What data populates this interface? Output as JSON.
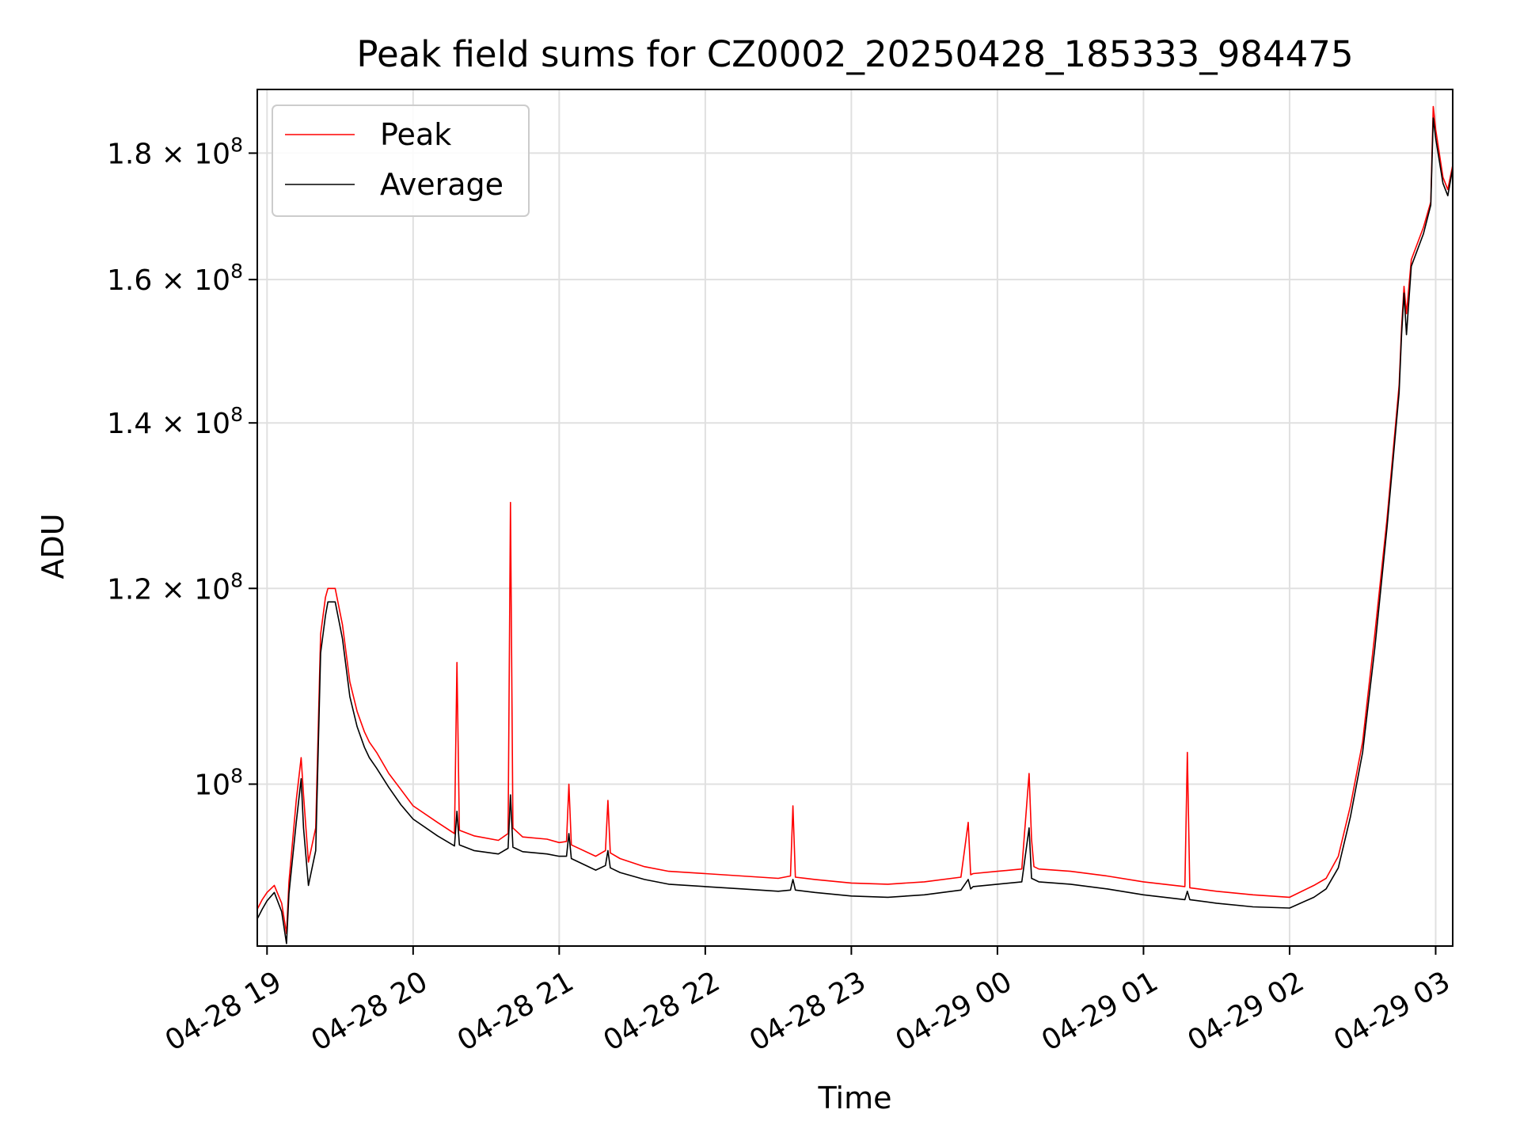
{
  "chart_data": {
    "type": "line",
    "title": "Peak field sums for CZ0002_20250428_185333_984475",
    "xlabel": "Time",
    "ylabel": "ADU",
    "yscale": "log",
    "grid": true,
    "legend_position": "upper left",
    "xlim": [
      "2025-04-28 18:56",
      "2025-04-29 03:07"
    ],
    "ylim": [
      86000000,
      191000000
    ],
    "x_ticks": [
      {
        "value": "2025-04-28 19:00",
        "label": "04-28 19"
      },
      {
        "value": "2025-04-28 20:00",
        "label": "04-28 20"
      },
      {
        "value": "2025-04-28 21:00",
        "label": "04-28 21"
      },
      {
        "value": "2025-04-28 22:00",
        "label": "04-28 22"
      },
      {
        "value": "2025-04-28 23:00",
        "label": "04-28 23"
      },
      {
        "value": "2025-04-29 00:00",
        "label": "04-29 00"
      },
      {
        "value": "2025-04-29 01:00",
        "label": "04-29 01"
      },
      {
        "value": "2025-04-29 02:00",
        "label": "04-29 02"
      },
      {
        "value": "2025-04-29 03:00",
        "label": "04-29 03"
      }
    ],
    "y_ticks": [
      {
        "value": 100000000,
        "mantissa": "",
        "exp": "8"
      },
      {
        "value": 120000000,
        "mantissa": "1.2",
        "exp": "8"
      },
      {
        "value": 140000000,
        "mantissa": "1.4",
        "exp": "8"
      },
      {
        "value": 160000000,
        "mantissa": "1.6",
        "exp": "8"
      },
      {
        "value": 180000000,
        "mantissa": "1.8",
        "exp": "8"
      }
    ],
    "series": [
      {
        "name": "Peak",
        "color": "#ff0000",
        "x": [
          "2025-04-28 18:56",
          "2025-04-28 18:58",
          "2025-04-28 19:00",
          "2025-04-28 19:03",
          "2025-04-28 19:06",
          "2025-04-28 19:08",
          "2025-04-28 19:09",
          "2025-04-28 19:12",
          "2025-04-28 19:14",
          "2025-04-28 19:15",
          "2025-04-28 19:17",
          "2025-04-28 19:20",
          "2025-04-28 19:22",
          "2025-04-28 19:24",
          "2025-04-28 19:25",
          "2025-04-28 19:28",
          "2025-04-28 19:31",
          "2025-04-28 19:34",
          "2025-04-28 19:37",
          "2025-04-28 19:40",
          "2025-04-28 19:42",
          "2025-04-28 19:45",
          "2025-04-28 19:50",
          "2025-04-28 19:55",
          "2025-04-28 20:00",
          "2025-04-28 20:10",
          "2025-04-28 20:17",
          "2025-04-28 20:18",
          "2025-04-28 20:19",
          "2025-04-28 20:25",
          "2025-04-28 20:35",
          "2025-04-28 20:39",
          "2025-04-28 20:40",
          "2025-04-28 20:41",
          "2025-04-28 20:45",
          "2025-04-28 20:55",
          "2025-04-28 21:00",
          "2025-04-28 21:03",
          "2025-04-28 21:04",
          "2025-04-28 21:05",
          "2025-04-28 21:15",
          "2025-04-28 21:19",
          "2025-04-28 21:20",
          "2025-04-28 21:21",
          "2025-04-28 21:25",
          "2025-04-28 21:35",
          "2025-04-28 21:45",
          "2025-04-28 22:00",
          "2025-04-28 22:15",
          "2025-04-28 22:30",
          "2025-04-28 22:35",
          "2025-04-28 22:36",
          "2025-04-28 22:37",
          "2025-04-28 22:45",
          "2025-04-28 23:00",
          "2025-04-28 23:15",
          "2025-04-28 23:30",
          "2025-04-28 23:45",
          "2025-04-28 23:48",
          "2025-04-28 23:49",
          "2025-04-28 23:50",
          "2025-04-29 00:00",
          "2025-04-29 00:10",
          "2025-04-29 00:13",
          "2025-04-29 00:14",
          "2025-04-29 00:15",
          "2025-04-29 00:17",
          "2025-04-29 00:30",
          "2025-04-29 00:45",
          "2025-04-29 01:00",
          "2025-04-29 01:17",
          "2025-04-29 01:18",
          "2025-04-29 01:19",
          "2025-04-29 01:30",
          "2025-04-29 01:45",
          "2025-04-29 02:00",
          "2025-04-29 02:10",
          "2025-04-29 02:15",
          "2025-04-29 02:20",
          "2025-04-29 02:25",
          "2025-04-29 02:30",
          "2025-04-29 02:35",
          "2025-04-29 02:40",
          "2025-04-29 02:45",
          "2025-04-29 02:46",
          "2025-04-29 02:47",
          "2025-04-29 02:48",
          "2025-04-29 02:50",
          "2025-04-29 02:55",
          "2025-04-29 02:58",
          "2025-04-29 02:59",
          "2025-04-29 03:00",
          "2025-04-29 03:03",
          "2025-04-29 03:05",
          "2025-04-29 03:07"
        ],
        "values": [
          89000000,
          89800000,
          90400000,
          91000000,
          89500000,
          87000000,
          91300000,
          98500000,
          102500000,
          99000000,
          93000000,
          96000000,
          115000000,
          119000000,
          120000000,
          120000000,
          116000000,
          110000000,
          107000000,
          105000000,
          104000000,
          103000000,
          101000000,
          99500000,
          98000000,
          96500000,
          95500000,
          112000000,
          95800000,
          95300000,
          94900000,
          95500000,
          130000000,
          96000000,
          95200000,
          95000000,
          94700000,
          94800000,
          100000000,
          94500000,
          93500000,
          94000000,
          98500000,
          93800000,
          93300000,
          92600000,
          92200000,
          92000000,
          91800000,
          91600000,
          91800000,
          98000000,
          91700000,
          91500000,
          91200000,
          91100000,
          91300000,
          91700000,
          96500000,
          91900000,
          92000000,
          92200000,
          92400000,
          101000000,
          95000000,
          92600000,
          92400000,
          92200000,
          91800000,
          91300000,
          90900000,
          103000000,
          90800000,
          90500000,
          90200000,
          90000000,
          91000000,
          91600000,
          93500000,
          98000000,
          104000000,
          115000000,
          128000000,
          145000000,
          153000000,
          159000000,
          155000000,
          163000000,
          168000000,
          172000000,
          188000000,
          184000000,
          176000000,
          174000000,
          178000000
        ]
      },
      {
        "name": "Average",
        "color": "#000000",
        "x": [
          "2025-04-28 18:56",
          "2025-04-28 18:58",
          "2025-04-28 19:00",
          "2025-04-28 19:03",
          "2025-04-28 19:06",
          "2025-04-28 19:08",
          "2025-04-28 19:09",
          "2025-04-28 19:12",
          "2025-04-28 19:14",
          "2025-04-28 19:15",
          "2025-04-28 19:17",
          "2025-04-28 19:20",
          "2025-04-28 19:22",
          "2025-04-28 19:24",
          "2025-04-28 19:25",
          "2025-04-28 19:28",
          "2025-04-28 19:31",
          "2025-04-28 19:34",
          "2025-04-28 19:37",
          "2025-04-28 19:40",
          "2025-04-28 19:42",
          "2025-04-28 19:45",
          "2025-04-28 19:50",
          "2025-04-28 19:55",
          "2025-04-28 20:00",
          "2025-04-28 20:10",
          "2025-04-28 20:17",
          "2025-04-28 20:18",
          "2025-04-28 20:19",
          "2025-04-28 20:25",
          "2025-04-28 20:35",
          "2025-04-28 20:39",
          "2025-04-28 20:40",
          "2025-04-28 20:41",
          "2025-04-28 20:45",
          "2025-04-28 20:55",
          "2025-04-28 21:00",
          "2025-04-28 21:03",
          "2025-04-28 21:04",
          "2025-04-28 21:05",
          "2025-04-28 21:15",
          "2025-04-28 21:19",
          "2025-04-28 21:20",
          "2025-04-28 21:21",
          "2025-04-28 21:25",
          "2025-04-28 21:35",
          "2025-04-28 21:45",
          "2025-04-28 22:00",
          "2025-04-28 22:15",
          "2025-04-28 22:30",
          "2025-04-28 22:35",
          "2025-04-28 22:36",
          "2025-04-28 22:37",
          "2025-04-28 22:45",
          "2025-04-28 23:00",
          "2025-04-28 23:15",
          "2025-04-28 23:30",
          "2025-04-28 23:45",
          "2025-04-28 23:48",
          "2025-04-28 23:49",
          "2025-04-28 23:50",
          "2025-04-29 00:00",
          "2025-04-29 00:10",
          "2025-04-29 00:13",
          "2025-04-29 00:14",
          "2025-04-29 00:15",
          "2025-04-29 00:17",
          "2025-04-29 00:30",
          "2025-04-29 00:45",
          "2025-04-29 01:00",
          "2025-04-29 01:17",
          "2025-04-29 01:18",
          "2025-04-29 01:19",
          "2025-04-29 01:30",
          "2025-04-29 01:45",
          "2025-04-29 02:00",
          "2025-04-29 02:10",
          "2025-04-29 02:15",
          "2025-04-29 02:20",
          "2025-04-29 02:25",
          "2025-04-29 02:30",
          "2025-04-29 02:35",
          "2025-04-29 02:40",
          "2025-04-29 02:45",
          "2025-04-29 02:46",
          "2025-04-29 02:47",
          "2025-04-29 02:48",
          "2025-04-29 02:50",
          "2025-04-29 02:55",
          "2025-04-29 02:58",
          "2025-04-29 02:59",
          "2025-04-29 03:00",
          "2025-04-29 03:03",
          "2025-04-29 03:05",
          "2025-04-29 03:07"
        ],
        "values": [
          88200000,
          89000000,
          89700000,
          90400000,
          88800000,
          86200000,
          90300000,
          96500000,
          100500000,
          96000000,
          91000000,
          94000000,
          113000000,
          117000000,
          118500000,
          118500000,
          114500000,
          108500000,
          105500000,
          103500000,
          102500000,
          101500000,
          99700000,
          98100000,
          96800000,
          95300000,
          94400000,
          97500000,
          94500000,
          94000000,
          93700000,
          94200000,
          99000000,
          94300000,
          93900000,
          93700000,
          93500000,
          93500000,
          95500000,
          93300000,
          92300000,
          92700000,
          94000000,
          92500000,
          92100000,
          91500000,
          91100000,
          90900000,
          90700000,
          90500000,
          90600000,
          91500000,
          90600000,
          90400000,
          90100000,
          90000000,
          90200000,
          90600000,
          91500000,
          90700000,
          90900000,
          91100000,
          91300000,
          96000000,
          91600000,
          91500000,
          91300000,
          91100000,
          90700000,
          90200000,
          89800000,
          90500000,
          89800000,
          89500000,
          89200000,
          89100000,
          90000000,
          90700000,
          92500000,
          97000000,
          103000000,
          113500000,
          127000000,
          144000000,
          152000000,
          158000000,
          152000000,
          162000000,
          167000000,
          171500000,
          186000000,
          182500000,
          175000000,
          173000000,
          177500000
        ]
      }
    ]
  }
}
